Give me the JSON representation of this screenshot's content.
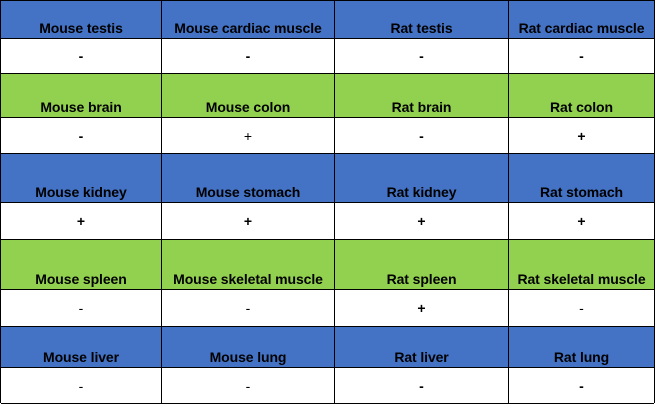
{
  "colors": {
    "header_blue": "#4472c4",
    "header_green": "#92d050",
    "value_bg": "#ffffff",
    "border": "#000000"
  },
  "rows": [
    {
      "header_color": "blue",
      "headers": [
        "Mouse testis",
        "Mouse cardiac muscle",
        "Rat testis",
        "Rat cardiac muscle"
      ],
      "values": [
        "-",
        "-",
        "-",
        "-"
      ]
    },
    {
      "header_color": "green",
      "headers": [
        "Mouse brain",
        "Mouse colon",
        "Rat brain",
        "Rat colon"
      ],
      "values": [
        "-",
        "+",
        "-",
        "+"
      ]
    },
    {
      "header_color": "blue",
      "headers": [
        "Mouse kidney",
        "Mouse stomach",
        "Rat kidney",
        "Rat stomach"
      ],
      "values": [
        "+",
        "+",
        "+",
        "+"
      ]
    },
    {
      "header_color": "green",
      "headers": [
        "Mouse spleen",
        "Mouse skeletal muscle",
        "Rat spleen",
        "Rat skeletal muscle"
      ],
      "values": [
        "-",
        "-",
        "+",
        "-"
      ]
    },
    {
      "header_color": "blue",
      "headers": [
        "Mouse liver",
        "Mouse lung",
        "Rat liver",
        "Rat lung"
      ],
      "values": [
        "-",
        "-",
        "-",
        "-"
      ]
    }
  ]
}
